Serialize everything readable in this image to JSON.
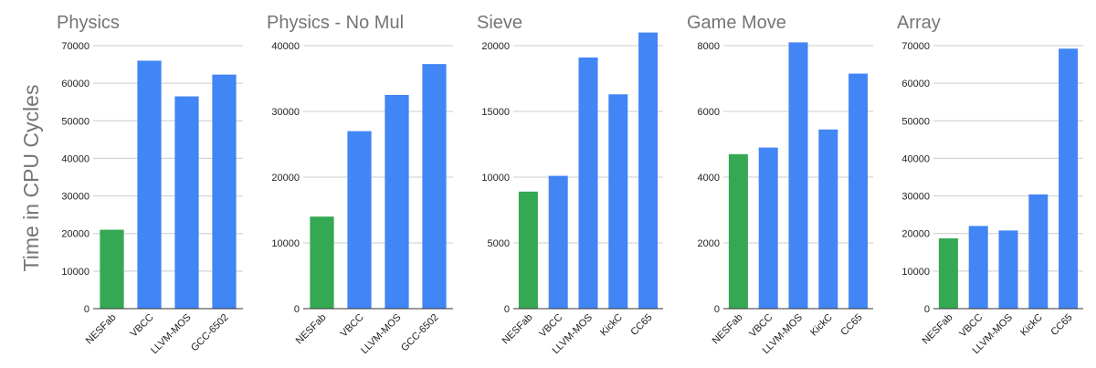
{
  "y_axis_label": "Time in CPU Cycles",
  "colors": {
    "highlight": "#34a853",
    "bar": "#4285f4",
    "grid": "#cccccc",
    "text": "#757575"
  },
  "chart_data": [
    {
      "type": "bar",
      "title": "Physics",
      "categories": [
        "NESFab",
        "VBCC",
        "LLVM-MOS",
        "GCC-6502"
      ],
      "values": [
        21000,
        66000,
        56500,
        62300
      ],
      "ylim": [
        0,
        70000
      ],
      "yticks": [
        0,
        10000,
        20000,
        30000,
        40000,
        50000,
        60000,
        70000
      ],
      "highlight_index": 0,
      "grid": true
    },
    {
      "type": "bar",
      "title": "Physics - No Mul",
      "categories": [
        "NESFab",
        "VBCC",
        "LLVM-MOS",
        "GCC-6502"
      ],
      "values": [
        14000,
        27000,
        32500,
        37200
      ],
      "ylim": [
        0,
        40000
      ],
      "yticks": [
        0,
        10000,
        20000,
        30000,
        40000
      ],
      "highlight_index": 0,
      "grid": true
    },
    {
      "type": "bar",
      "title": "Sieve",
      "categories": [
        "NESFab",
        "VBCC",
        "LLVM-MOS",
        "KickC",
        "CC65"
      ],
      "values": [
        8900,
        10100,
        19100,
        16300,
        21000
      ],
      "ylim": [
        0,
        20000
      ],
      "yticks": [
        0,
        5000,
        10000,
        15000,
        20000
      ],
      "highlight_index": 0,
      "grid": true
    },
    {
      "type": "bar",
      "title": "Game Move",
      "categories": [
        "NESFab",
        "VBCC",
        "LLVM-MOS",
        "KickC",
        "CC65"
      ],
      "values": [
        4700,
        4900,
        8100,
        5450,
        7150
      ],
      "ylim": [
        0,
        8000
      ],
      "yticks": [
        0,
        2000,
        4000,
        6000,
        8000
      ],
      "highlight_index": 0,
      "grid": true
    },
    {
      "type": "bar",
      "title": "Array",
      "categories": [
        "NESFab",
        "VBCC",
        "LLVM-MOS",
        "KickC",
        "CC65"
      ],
      "values": [
        18700,
        22000,
        20800,
        30400,
        69200
      ],
      "ylim": [
        0,
        70000
      ],
      "yticks": [
        0,
        10000,
        20000,
        30000,
        40000,
        50000,
        60000,
        70000
      ],
      "highlight_index": 0,
      "grid": true
    }
  ]
}
